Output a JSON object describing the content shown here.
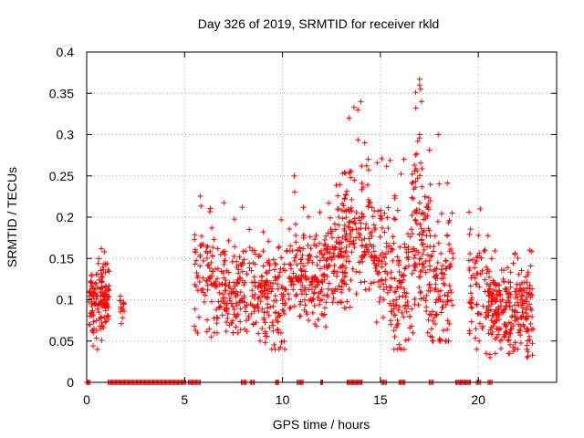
{
  "chart_data": {
    "type": "scatter",
    "title": "Day 326 of 2019, SRMTID for receiver rkld",
    "xlabel": "GPS time / hours",
    "ylabel": "SRMTID / TECUs",
    "xlim": [
      0,
      24
    ],
    "ylim": [
      0,
      0.4
    ],
    "xticks": [
      0,
      5,
      10,
      15,
      20
    ],
    "xtick_labels": [
      "0",
      "5",
      "10",
      "15",
      "20"
    ],
    "yticks": [
      0,
      0.05,
      0.1,
      0.15,
      0.2,
      0.25,
      0.3,
      0.35,
      0.4
    ],
    "ytick_labels": [
      "0",
      "0.05",
      "0.1",
      "0.15",
      "0.2",
      "0.25",
      "0.3",
      "0.35",
      "0.4"
    ],
    "grid": true,
    "marker": "+",
    "marker_color": "#ff0000",
    "series": [
      {
        "name": "SRMTID",
        "clusters": [
          {
            "x_start": 0.1,
            "x_end": 1.15,
            "y_min": 0.04,
            "y_max": 0.16,
            "y_center": 0.105,
            "count": 140
          },
          {
            "x_start": 1.7,
            "x_end": 1.95,
            "y_min": 0.07,
            "y_max": 0.105,
            "y_center": 0.09,
            "count": 14
          },
          {
            "x_start": 5.5,
            "x_end": 6.5,
            "y_min": 0.05,
            "y_max": 0.23,
            "y_center": 0.13,
            "count": 70
          },
          {
            "x_start": 6.5,
            "x_end": 8.0,
            "y_min": 0.06,
            "y_max": 0.23,
            "y_center": 0.11,
            "count": 130
          },
          {
            "x_start": 8.0,
            "x_end": 9.0,
            "y_min": 0.05,
            "y_max": 0.2,
            "y_center": 0.1,
            "count": 70
          },
          {
            "x_start": 9.0,
            "x_end": 10.2,
            "y_min": 0.04,
            "y_max": 0.21,
            "y_center": 0.1,
            "count": 110
          },
          {
            "x_start": 10.2,
            "x_end": 11.2,
            "y_min": 0.08,
            "y_max": 0.25,
            "y_center": 0.14,
            "count": 80
          },
          {
            "x_start": 11.2,
            "x_end": 12.3,
            "y_min": 0.06,
            "y_max": 0.21,
            "y_center": 0.12,
            "count": 100
          },
          {
            "x_start": 12.3,
            "x_end": 13.3,
            "y_min": 0.08,
            "y_max": 0.25,
            "y_center": 0.15,
            "count": 90
          },
          {
            "x_start": 13.0,
            "x_end": 14.5,
            "y_min": 0.09,
            "y_max": 0.34,
            "y_center": 0.18,
            "count": 130
          },
          {
            "x_start": 14.5,
            "x_end": 15.6,
            "y_min": 0.07,
            "y_max": 0.28,
            "y_center": 0.15,
            "count": 90
          },
          {
            "x_start": 15.6,
            "x_end": 16.6,
            "y_min": 0.04,
            "y_max": 0.27,
            "y_center": 0.12,
            "count": 90
          },
          {
            "x_start": 16.6,
            "x_end": 17.5,
            "y_min": 0.06,
            "y_max": 0.365,
            "y_center": 0.17,
            "count": 110
          },
          {
            "x_start": 17.5,
            "x_end": 18.7,
            "y_min": 0.05,
            "y_max": 0.3,
            "y_center": 0.11,
            "count": 110
          },
          {
            "x_start": 19.5,
            "x_end": 20.5,
            "y_min": 0.04,
            "y_max": 0.21,
            "y_center": 0.11,
            "count": 70
          },
          {
            "x_start": 20.5,
            "x_end": 22.8,
            "y_min": 0.03,
            "y_max": 0.17,
            "y_center": 0.09,
            "count": 260
          }
        ],
        "outliers": [
          {
            "x": 0.75,
            "y": 0.162
          },
          {
            "x": 0.9,
            "y": 0.158
          },
          {
            "x": 0.55,
            "y": 0.04
          },
          {
            "x": 14.0,
            "y": 0.34
          },
          {
            "x": 13.85,
            "y": 0.33
          },
          {
            "x": 13.4,
            "y": 0.32
          },
          {
            "x": 14.2,
            "y": 0.29
          },
          {
            "x": 17.0,
            "y": 0.367
          },
          {
            "x": 17.0,
            "y": 0.36
          },
          {
            "x": 17.05,
            "y": 0.355
          },
          {
            "x": 17.1,
            "y": 0.34
          },
          {
            "x": 17.0,
            "y": 0.3
          },
          {
            "x": 17.95,
            "y": 0.3
          },
          {
            "x": 16.2,
            "y": 0.27
          },
          {
            "x": 10.6,
            "y": 0.25
          },
          {
            "x": 20.1,
            "y": 0.21
          },
          {
            "x": 20.4,
            "y": 0.035
          },
          {
            "x": 20.6,
            "y": 0.03
          }
        ],
        "zero_segments": [
          [
            0.0,
            0.15
          ],
          [
            1.1,
            5.05
          ],
          [
            5.2,
            5.8
          ],
          [
            7.9,
            8.15
          ],
          [
            8.35,
            8.55
          ],
          [
            9.65,
            9.8
          ],
          [
            10.75,
            11.05
          ],
          [
            11.95,
            12.05
          ],
          [
            13.3,
            14.05
          ],
          [
            15.05,
            15.3
          ],
          [
            15.95,
            16.25
          ],
          [
            17.5,
            17.7
          ],
          [
            18.85,
            19.6
          ],
          [
            19.9,
            20.1
          ],
          [
            20.5,
            20.7
          ]
        ]
      }
    ]
  }
}
